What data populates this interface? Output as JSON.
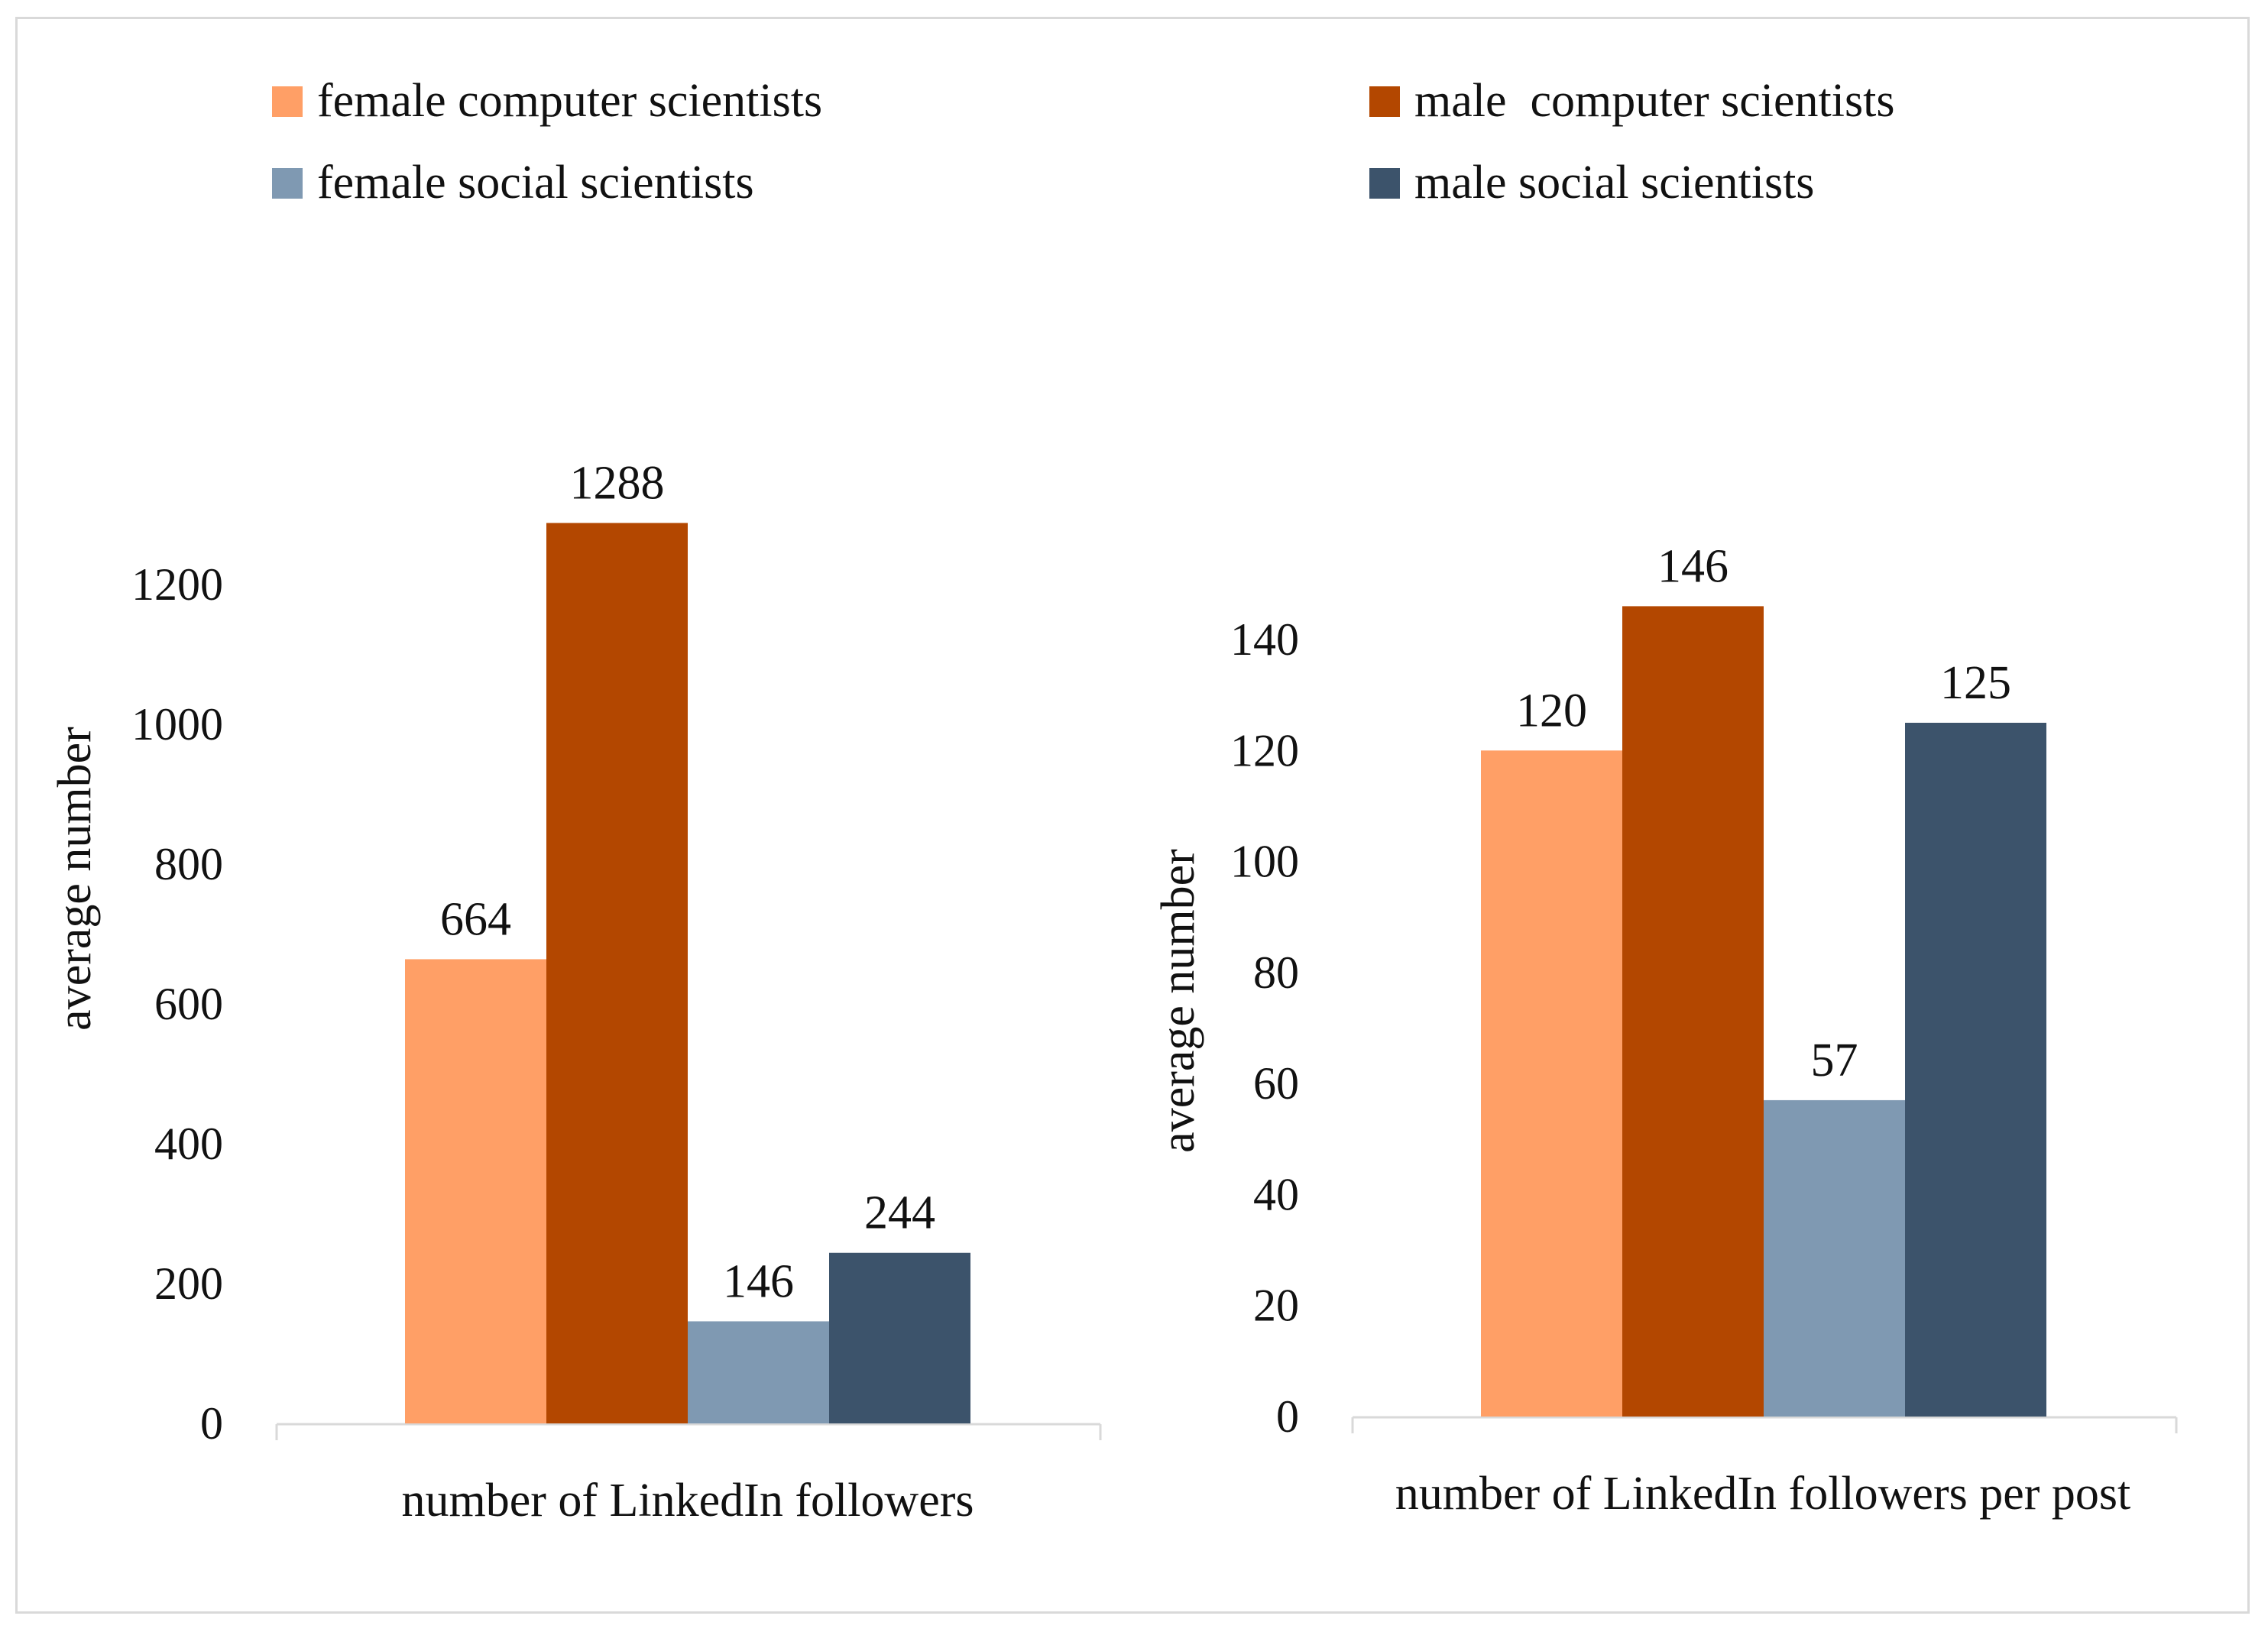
{
  "legend": [
    {
      "label": "female computer scientists",
      "color": "#FF9F66"
    },
    {
      "label": "male  computer scientists",
      "color": "#B34700"
    },
    {
      "label": "female social scientists",
      "color": "#7F99B2"
    },
    {
      "label": "male social scientists",
      "color": "#3C536B"
    }
  ],
  "chart_data": [
    {
      "type": "bar",
      "categories": [
        "number of LinkedIn followers"
      ],
      "xlabel": "number of LinkedIn followers",
      "ylabel": "average number",
      "ylim": [
        0,
        1300
      ],
      "yticks": [
        0,
        200,
        400,
        600,
        800,
        1000,
        1200
      ],
      "grid": false,
      "legend": "top",
      "series": [
        {
          "name": "female computer scientists",
          "values": [
            664
          ],
          "label": "664",
          "color": "#FF9F66"
        },
        {
          "name": "male  computer scientists",
          "values": [
            1288
          ],
          "label": "1288",
          "color": "#B34700"
        },
        {
          "name": "female social scientists",
          "values": [
            146
          ],
          "label": "146",
          "color": "#7F99B2"
        },
        {
          "name": "male social scientists",
          "values": [
            244
          ],
          "label": "244",
          "color": "#3C536B"
        }
      ]
    },
    {
      "type": "bar",
      "categories": [
        "number of LinkedIn followers per post"
      ],
      "xlabel": "number of LinkedIn followers per post",
      "ylabel": "average number",
      "ylim": [
        0,
        150
      ],
      "yticks": [
        0,
        20,
        40,
        60,
        80,
        100,
        120,
        140
      ],
      "grid": false,
      "legend": "top",
      "series": [
        {
          "name": "female computer scientists",
          "values": [
            120
          ],
          "label": "120",
          "color": "#FF9F66"
        },
        {
          "name": "male  computer scientists",
          "values": [
            146
          ],
          "label": "146",
          "color": "#B34700"
        },
        {
          "name": "female social scientists",
          "values": [
            57
          ],
          "label": "57",
          "color": "#7F99B2"
        },
        {
          "name": "male social scientists",
          "values": [
            125
          ],
          "label": "125",
          "color": "#3C536B"
        }
      ]
    }
  ]
}
